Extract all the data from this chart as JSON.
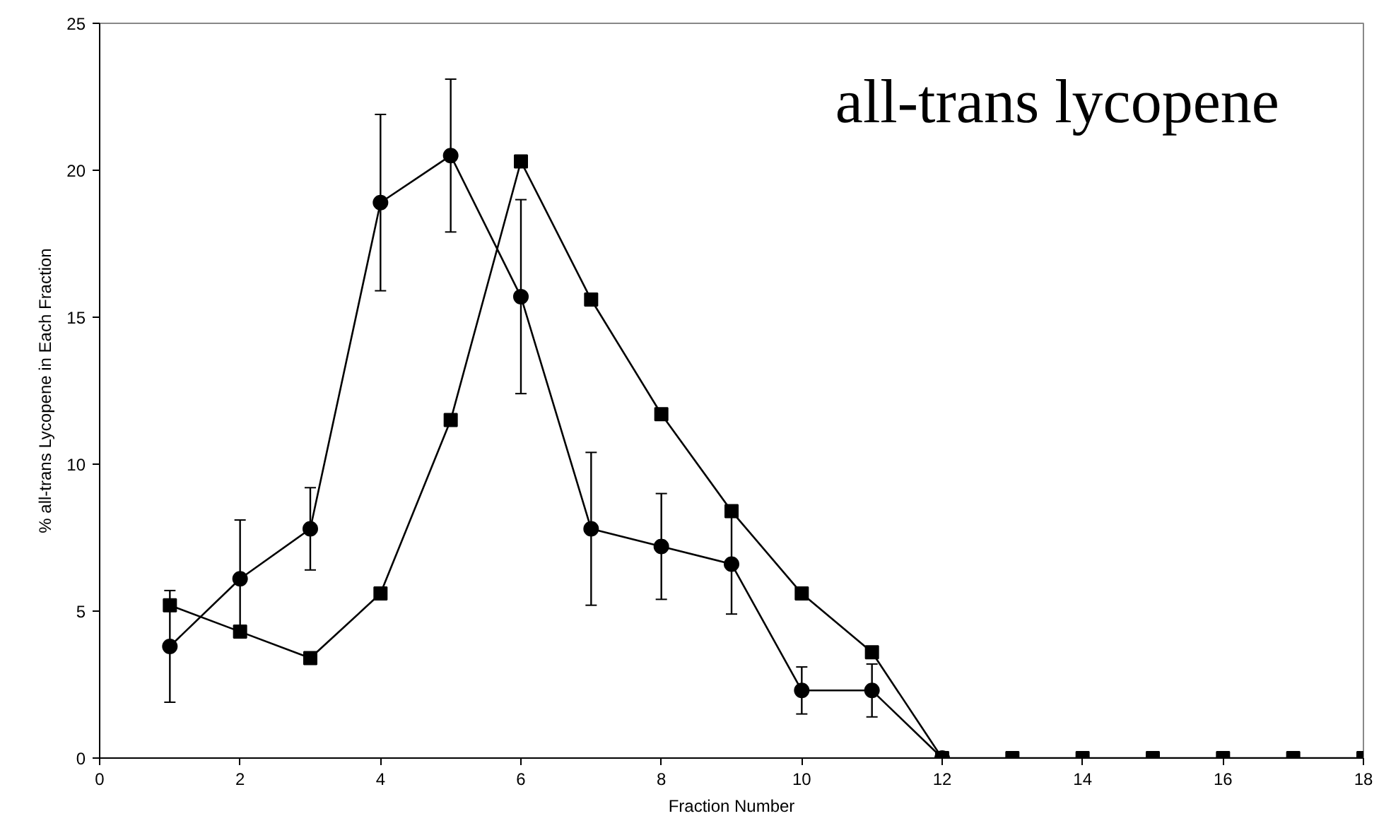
{
  "chart_data": {
    "type": "line",
    "xlabel": "Fraction Number",
    "ylabel": "% all-trans Lycopene in Each Fraction",
    "annotations": [
      "all-trans lycopene"
    ],
    "xlim": [
      0,
      18
    ],
    "xticks": [
      0,
      2,
      4,
      6,
      8,
      10,
      12,
      14,
      16,
      18
    ],
    "ylim": [
      0,
      25
    ],
    "yticks": [
      0,
      5,
      10,
      15,
      20,
      25
    ],
    "grid": false,
    "series": [
      {
        "color": "#000000",
        "marker": "circle",
        "x": [
          1,
          2,
          3,
          4,
          5,
          6,
          7,
          8,
          9,
          10,
          11,
          12
        ],
        "values": [
          3.8,
          6.1,
          7.8,
          18.9,
          20.5,
          15.7,
          7.8,
          7.2,
          6.6,
          2.3,
          2.3,
          0
        ],
        "errors": [
          1.9,
          2.0,
          1.4,
          3.0,
          2.6,
          3.3,
          2.6,
          1.8,
          1.7,
          0.8,
          0.9,
          null
        ]
      },
      {
        "color": "#000000",
        "marker": "square",
        "x": [
          1,
          2,
          3,
          4,
          5,
          6,
          7,
          8,
          9,
          10,
          11,
          12,
          13,
          14,
          15,
          16,
          17,
          18
        ],
        "values": [
          5.2,
          4.3,
          3.4,
          5.6,
          11.5,
          20.3,
          15.6,
          11.7,
          8.4,
          5.6,
          3.6,
          0,
          0,
          0,
          0,
          0,
          0,
          0
        ]
      }
    ]
  }
}
